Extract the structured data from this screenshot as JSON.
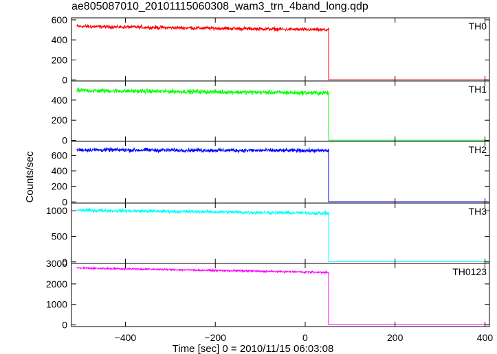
{
  "window": {
    "title": "ae805087010_20101115060308_wam3_trn_4band_long.qdp"
  },
  "chart_data": {
    "type": "line",
    "title": "ae805087010_20101115060308_wam3_trn_4band_long.qdp",
    "xlabel": "Time [sec] 0 = 2010/11/15 06:03:08",
    "ylabel": "Counts/sec",
    "xlim": [
      -520,
      410
    ],
    "x_ticks": [
      -400,
      -200,
      0,
      200,
      400
    ],
    "grid": false,
    "x_start": -508,
    "x_end": 405,
    "drop_x": 52,
    "panels": [
      {
        "name": "TH0",
        "color": "#ff0000",
        "ylim": [
          -10,
          620
        ],
        "y_ticks": [
          0,
          200,
          400,
          600
        ],
        "level_start": 535,
        "level_end": 500,
        "noise": 18,
        "after": 2
      },
      {
        "name": "TH1",
        "color": "#00ff00",
        "ylim": [
          -10,
          590
        ],
        "y_ticks": [
          0,
          200,
          400
        ],
        "level_start": 495,
        "level_end": 470,
        "noise": 22,
        "after": 2
      },
      {
        "name": "TH2",
        "color": "#0000ff",
        "ylim": [
          -15,
          780
        ],
        "y_ticks": [
          0,
          200,
          400,
          600
        ],
        "level_start": 670,
        "level_end": 660,
        "noise": 25,
        "after": 3
      },
      {
        "name": "TH3",
        "color": "#00ffff",
        "ylim": [
          -30,
          1150
        ],
        "y_ticks": [
          0,
          500,
          1000
        ],
        "level_start": 1010,
        "level_end": 950,
        "noise": 35,
        "after": 5
      },
      {
        "name": "TH0123",
        "color": "#ff00ff",
        "ylim": [
          -80,
          3000
        ],
        "y_ticks": [
          0,
          1000,
          2000,
          3000
        ],
        "level_start": 2780,
        "level_end": 2560,
        "noise": 45,
        "after": 10
      }
    ]
  }
}
